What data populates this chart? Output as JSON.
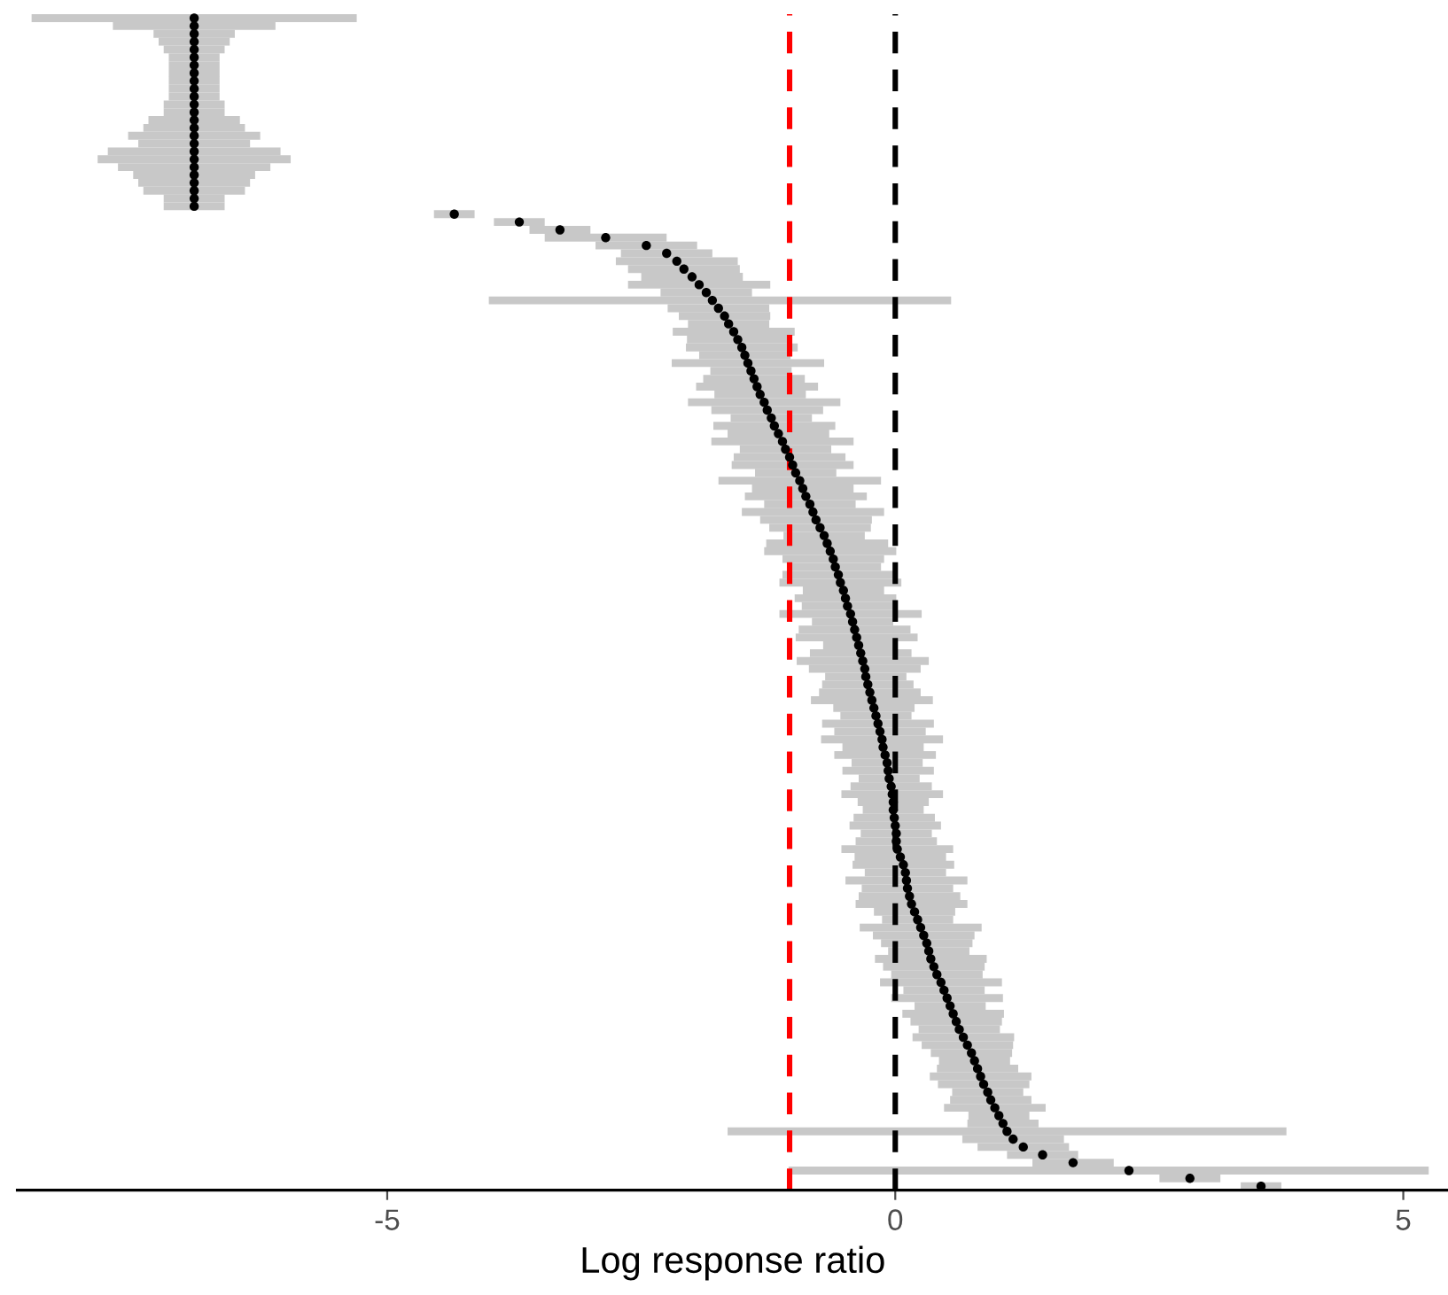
{
  "chart_data": {
    "type": "scatter",
    "orientation": "horizontal",
    "xlabel": "Log response ratio",
    "color": "#000000",
    "marker": "circle",
    "tick_labels": "x",
    "xlim": [
      -8.64,
      5.44
    ],
    "xticks": [
      -5,
      0,
      5
    ],
    "ref_lines": [
      {
        "axis": "x",
        "value": -1.04,
        "color": "#ff0000",
        "line_style": "dashed"
      },
      {
        "axis": "x",
        "value": 0,
        "color": "#000000",
        "line_style": "dashed"
      }
    ],
    "categories": [
      null,
      null,
      null,
      null,
      null,
      null,
      null,
      null,
      null,
      null,
      null,
      null,
      null,
      null,
      null,
      null,
      null,
      null,
      null,
      null,
      null,
      null,
      null,
      null,
      null,
      null,
      null,
      null,
      null,
      null,
      null,
      null,
      null,
      null,
      null,
      null,
      null,
      null,
      null,
      null,
      null,
      null,
      null,
      null,
      null,
      null,
      null,
      null,
      null,
      null,
      null,
      null,
      null,
      null,
      null,
      null,
      null,
      null,
      null,
      null,
      null,
      null,
      null,
      null,
      null,
      null,
      null,
      null,
      null,
      null,
      null,
      null,
      null,
      null,
      null,
      null,
      null,
      null,
      null,
      null,
      null,
      null,
      null,
      null,
      null,
      null,
      null,
      null,
      null,
      null,
      null,
      null,
      null,
      null,
      null,
      null,
      null,
      null,
      null,
      null,
      null,
      null,
      null,
      null,
      null,
      null,
      null,
      null,
      null,
      null,
      null,
      null,
      null,
      null,
      null,
      null,
      null,
      null,
      null,
      null,
      null,
      null,
      null,
      null,
      null,
      null,
      null,
      null,
      null,
      null,
      null,
      null,
      null,
      null,
      null,
      null,
      null,
      null,
      null,
      null,
      null,
      null,
      null,
      null,
      null,
      null,
      null,
      null,
      null,
      null
    ],
    "values": [
      -6.9,
      -6.9,
      -6.9,
      -6.9,
      -6.9,
      -6.9,
      -6.9,
      -6.9,
      -6.9,
      -6.9,
      -6.9,
      -6.9,
      -6.9,
      -6.9,
      -6.9,
      -6.9,
      -6.9,
      -6.9,
      -6.9,
      -6.9,
      -6.9,
      -6.9,
      -6.9,
      -6.9,
      -6.9,
      -4.34,
      -3.7,
      -3.3,
      -2.85,
      -2.45,
      -2.25,
      -2.15,
      -2.08,
      -2.0,
      -1.93,
      -1.86,
      -1.8,
      -1.74,
      -1.68,
      -1.64,
      -1.59,
      -1.55,
      -1.51,
      -1.48,
      -1.45,
      -1.42,
      -1.39,
      -1.36,
      -1.33,
      -1.29,
      -1.26,
      -1.22,
      -1.19,
      -1.15,
      -1.11,
      -1.08,
      -1.04,
      -1.01,
      -0.98,
      -0.94,
      -0.91,
      -0.88,
      -0.84,
      -0.81,
      -0.78,
      -0.74,
      -0.7,
      -0.67,
      -0.64,
      -0.61,
      -0.59,
      -0.56,
      -0.54,
      -0.51,
      -0.49,
      -0.47,
      -0.44,
      -0.42,
      -0.4,
      -0.38,
      -0.36,
      -0.34,
      -0.32,
      -0.3,
      -0.29,
      -0.27,
      -0.25,
      -0.23,
      -0.21,
      -0.19,
      -0.17,
      -0.15,
      -0.13,
      -0.12,
      -0.1,
      -0.08,
      -0.07,
      -0.06,
      -0.04,
      -0.03,
      -0.02,
      -0.02,
      -0.01,
      0.0,
      0.01,
      0.01,
      0.02,
      0.05,
      0.08,
      0.1,
      0.11,
      0.12,
      0.14,
      0.16,
      0.19,
      0.22,
      0.25,
      0.28,
      0.31,
      0.33,
      0.35,
      0.38,
      0.41,
      0.45,
      0.48,
      0.51,
      0.54,
      0.57,
      0.6,
      0.63,
      0.67,
      0.71,
      0.75,
      0.78,
      0.81,
      0.84,
      0.87,
      0.91,
      0.94,
      0.98,
      1.02,
      1.06,
      1.1,
      1.16,
      1.26,
      1.45,
      1.75,
      2.3,
      2.9,
      3.6
    ],
    "errors": [
      [
        -8.5,
        -5.3
      ],
      0.8,
      0.4,
      0.35,
      0.3,
      0.25,
      0.25,
      0.25,
      0.25,
      0.25,
      0.25,
      0.3,
      0.3,
      0.45,
      0.5,
      0.65,
      0.55,
      0.85,
      0.95,
      0.75,
      0.6,
      0.55,
      0.5,
      0.3,
      0.3,
      0.2,
      0.25,
      0.3,
      0.6,
      0.5,
      0.45,
      0.6,
      0.55,
      0.5,
      0.7,
      0.45,
      [
        -4.0,
        0.55
      ],
      0.5,
      0.45,
      0.4,
      0.6,
      0.5,
      0.55,
      0.45,
      0.75,
      0.4,
      0.5,
      0.6,
      0.45,
      0.75,
      0.55,
      0.4,
      0.6,
      0.5,
      0.7,
      0.45,
      0.55,
      0.6,
      0.4,
      0.8,
      0.5,
      0.6,
      0.45,
      0.7,
      0.55,
      0.5,
      0.4,
      0.6,
      0.65,
      0.5,
      0.45,
      0.55,
      0.6,
      0.4,
      0.5,
      0.45,
      0.7,
      0.4,
      0.55,
      0.6,
      0.35,
      0.5,
      0.65,
      0.55,
      0.4,
      0.45,
      0.5,
      0.6,
      0.4,
      0.35,
      0.55,
      0.45,
      0.6,
      0.4,
      0.5,
      0.35,
      0.45,
      0.3,
      0.4,
      0.5,
      0.35,
      0.3,
      0.4,
      0.45,
      0.35,
      0.4,
      0.55,
      0.45,
      0.5,
      0.4,
      0.6,
      0.45,
      0.5,
      0.55,
      0.4,
      0.35,
      0.6,
      0.5,
      0.45,
      0.4,
      0.55,
      0.5,
      0.45,
      0.6,
      0.4,
      0.55,
      0.35,
      0.5,
      0.45,
      0.4,
      0.5,
      0.45,
      0.4,
      0.35,
      0.4,
      0.5,
      0.45,
      0.35,
      0.4,
      0.5,
      0.3,
      0.35,
      [
        -1.65,
        3.85
      ],
      0.5,
      0.45,
      0.35,
      0.4,
      [
        -1.05,
        5.25
      ],
      0.3,
      0.2
    ]
  }
}
